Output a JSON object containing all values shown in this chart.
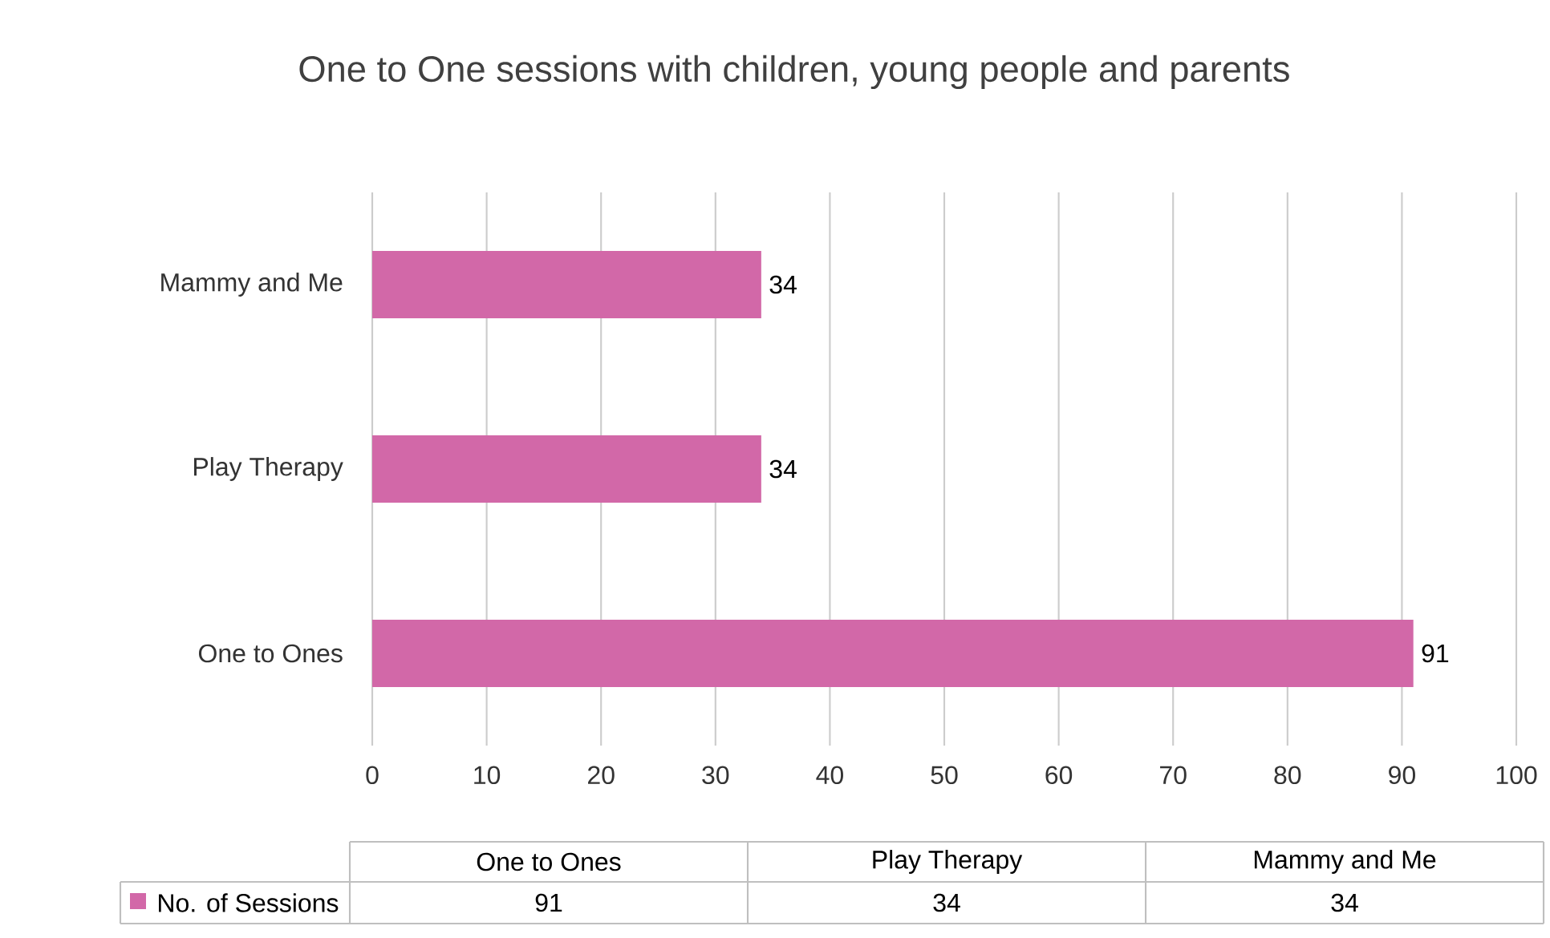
{
  "chart_data": {
    "type": "bar",
    "orientation": "horizontal",
    "title": "One to One sessions with children, young people and parents",
    "categories": [
      "Mammy and Me",
      "Play Therapy",
      "One to Ones"
    ],
    "series": [
      {
        "name": "No. of Sessions",
        "color": "#d268a8",
        "values": [
          34,
          34,
          91
        ],
        "value_labels": [
          "34",
          "34",
          "91"
        ]
      }
    ],
    "xlim": [
      0,
      100
    ],
    "xticks": [
      0,
      10,
      20,
      30,
      40,
      50,
      60,
      70,
      80,
      90,
      100
    ],
    "grid": "x",
    "data_labels": true,
    "legend": "bottom"
  }
}
